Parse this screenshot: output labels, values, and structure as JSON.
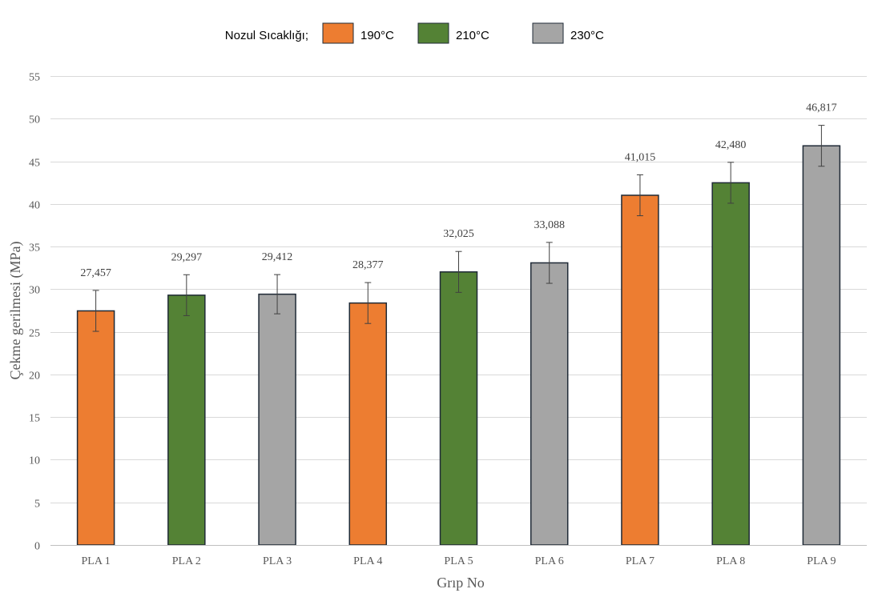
{
  "chart_data": {
    "type": "bar",
    "title": "",
    "xlabel": "Grıp No",
    "ylabel": "Çekme gerilmesi (MPa)",
    "ylim": [
      0,
      55
    ],
    "yticks": [
      "0",
      "5",
      "10",
      "15",
      "20",
      "25",
      "30",
      "35",
      "40",
      "45",
      "50",
      "55"
    ],
    "grid": true,
    "legend_title": "Nozul Sıcaklığı;",
    "legend_position": "top-center",
    "legend": [
      {
        "label": "190°C",
        "color": "#ED7D31"
      },
      {
        "label": "210°C",
        "color": "#548235"
      },
      {
        "label": "230°C",
        "color": "#A5A5A5"
      }
    ],
    "categories": [
      "PLA 1",
      "PLA 2",
      "PLA 3",
      "PLA 4",
      "PLA 5",
      "PLA 6",
      "PLA 7",
      "PLA 8",
      "PLA 9"
    ],
    "values": [
      27.457,
      29.297,
      29.412,
      28.377,
      32.025,
      33.088,
      41.015,
      42.48,
      46.817
    ],
    "value_labels": [
      "27,457",
      "29,297",
      "29,412",
      "28,377",
      "32,025",
      "33,088",
      "41,015",
      "42,480",
      "46,817"
    ],
    "error": [
      2.4,
      2.4,
      2.3,
      2.4,
      2.4,
      2.4,
      2.4,
      2.4,
      2.4
    ],
    "temperature_group": [
      0,
      1,
      2,
      0,
      1,
      2,
      0,
      1,
      2
    ]
  }
}
